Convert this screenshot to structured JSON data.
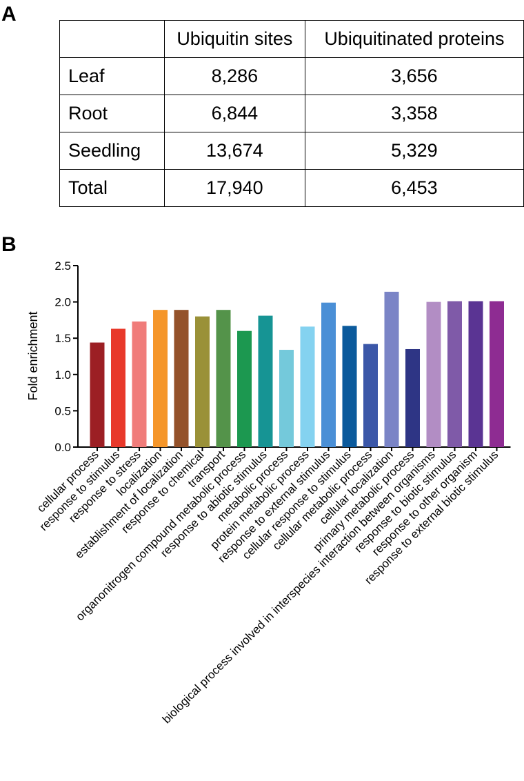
{
  "panel_a": {
    "label": "A",
    "header": [
      "",
      "Ubiquitin  sites",
      "Ubiquitinated  proteins"
    ],
    "rows": [
      [
        "Leaf",
        "8,286",
        "3,656"
      ],
      [
        "Root",
        "6,844",
        "3,358"
      ],
      [
        "Seedling",
        "13,674",
        "5,329"
      ],
      [
        "Total",
        "17,940",
        "6,453"
      ]
    ]
  },
  "panel_b": {
    "label": "B"
  },
  "chart_data": {
    "type": "bar",
    "title": "",
    "xlabel": "",
    "ylabel": "Fold enrichment",
    "ylim": [
      0,
      2.5
    ],
    "yticks": [
      "0.0",
      "0.5",
      "1.0",
      "1.5",
      "2.0",
      "2.5"
    ],
    "grid": false,
    "categories": [
      "cellular process",
      "response to stimulus",
      "response to stress",
      "localization",
      "establishment of localization",
      "response to chemical",
      "transport",
      "organonitrogen compound metabolic process",
      "response to abiotic stimulus",
      "metabolic process",
      "protein metabolic process",
      "response to external stimulus",
      "cellular response to stimulus",
      "cellular metabolic process",
      "cellular localization",
      "primary metabolic process",
      "biological process involved in interspecies interaction between organisms",
      "response to biotic stimulus",
      "response to other organism",
      "response to external biotic stimulus"
    ],
    "values": [
      1.44,
      1.63,
      1.73,
      1.89,
      1.89,
      1.8,
      1.89,
      1.6,
      1.81,
      1.34,
      1.66,
      1.99,
      1.67,
      1.42,
      2.14,
      1.35,
      2.0,
      2.01,
      2.01,
      2.01
    ],
    "colors": [
      "#9c1f24",
      "#e8392b",
      "#f07c7a",
      "#f5962a",
      "#94522a",
      "#9a9138",
      "#54934a",
      "#1c9850",
      "#169494",
      "#74c9db",
      "#84d2f0",
      "#4a8fd6",
      "#0b5a9c",
      "#3b57a8",
      "#7a84c6",
      "#2e3585",
      "#b28dc4",
      "#7f5aa8",
      "#5a3493",
      "#8e2c92"
    ]
  }
}
